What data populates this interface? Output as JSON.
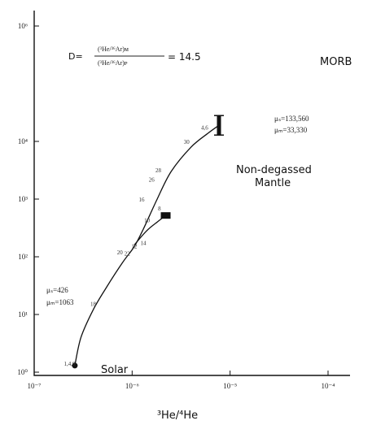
{
  "chart_data": {
    "type": "scatter",
    "title": "",
    "xlabel": "³He/⁴He",
    "ylabel": "",
    "xscale": "log",
    "yscale": "log",
    "xlim": [
      1e-07,
      0.0001
    ],
    "ylim": [
      1,
      1000000
    ],
    "x_ticks": [
      {
        "value": 1e-07,
        "label": "10⁻⁷"
      },
      {
        "value": 1e-06,
        "label": "10⁻⁶"
      },
      {
        "value": 1e-05,
        "label": "10⁻⁵"
      },
      {
        "value": 0.0001,
        "label": "10⁻⁴"
      }
    ],
    "y_ticks": [
      {
        "value": 1,
        "label": "10⁰"
      },
      {
        "value": 10,
        "label": "10¹"
      },
      {
        "value": 100,
        "label": "10²"
      },
      {
        "value": 1000,
        "label": "10³"
      },
      {
        "value": 10000,
        "label": "10⁴"
      },
      {
        "value": 1000000,
        "label": "10⁶"
      }
    ],
    "equation": {
      "lhs": "D=",
      "numerator": "(³He/³⁶Ar)ᴍ",
      "denominator": "(³He/³⁶Ar)ᴘ",
      "rhs": "= 14.5"
    },
    "curves": [
      {
        "name": "main",
        "points": [
          [
            2.6e-07,
            1.3
          ],
          [
            3e-07,
            4
          ],
          [
            4e-07,
            12
          ],
          [
            5.5e-07,
            30
          ],
          [
            8e-07,
            80
          ],
          [
            1.05e-06,
            150
          ],
          [
            1.3e-06,
            300
          ],
          [
            1.8e-06,
            1000
          ],
          [
            2.5e-06,
            3000
          ],
          [
            4e-06,
            8000
          ],
          [
            6e-06,
            14000
          ],
          [
            7.7e-06,
            19000
          ]
        ]
      },
      {
        "name": "branch",
        "points": [
          [
            1.05e-06,
            160
          ],
          [
            1.4e-06,
            280
          ],
          [
            1.8e-06,
            400
          ],
          [
            2.2e-06,
            520
          ]
        ]
      }
    ],
    "end_markers": [
      {
        "name": "Solar",
        "x": 2.6e-07,
        "y": 1.3
      },
      {
        "name": "Non-degassed Mantle",
        "x": 2.2e-06,
        "y": 520
      },
      {
        "name": "MORB",
        "x": 7.7e-06,
        "y": 19000
      }
    ],
    "point_labels": [
      {
        "text": "1,4,0",
        "x": 2.3e-07,
        "y": 1.3
      },
      {
        "text": "18",
        "x": 4e-07,
        "y": 14
      },
      {
        "text": "20",
        "x": 7.5e-07,
        "y": 110
      },
      {
        "text": "22",
        "x": 8.9e-07,
        "y": 105
      },
      {
        "text": "12",
        "x": 1.05e-06,
        "y": 140
      },
      {
        "text": "14",
        "x": 1.3e-06,
        "y": 160
      },
      {
        "text": "10",
        "x": 1.42e-06,
        "y": 395
      },
      {
        "text": "8",
        "x": 1.9e-06,
        "y": 640
      },
      {
        "text": "16",
        "x": 1.25e-06,
        "y": 900
      },
      {
        "text": "26",
        "x": 1.58e-06,
        "y": 2000
      },
      {
        "text": "28",
        "x": 1.85e-06,
        "y": 2900
      },
      {
        "text": "30",
        "x": 3.6e-06,
        "y": 9000
      },
      {
        "text": "4,6",
        "x": 5.5e-06,
        "y": 16000
      }
    ],
    "annotations": {
      "left_mu_1": "μₛ=426",
      "left_mu_2": "μₘ=1063",
      "right_mu_1": "μₛ=133,560",
      "right_mu_2": "μₘ=33,330"
    },
    "grid": false,
    "legend": "none"
  }
}
